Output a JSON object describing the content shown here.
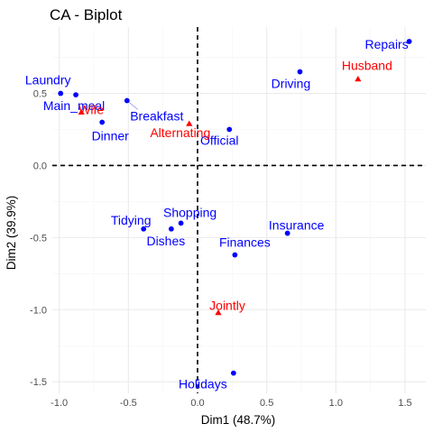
{
  "chart_data": {
    "type": "scatter",
    "title": "CA - Biplot",
    "xlabel": "Dim1 (48.7%)",
    "ylabel": "Dim2 (39.9%)",
    "xlim": [
      -1.05,
      1.65
    ],
    "ylim": [
      -1.58,
      0.96
    ],
    "x_ticks": [
      -1.0,
      -0.5,
      0.0,
      0.5,
      1.0,
      1.5
    ],
    "x_tick_labels": [
      "-1.0",
      "-0.5",
      "0.0",
      "0.5",
      "1.0",
      "1.5"
    ],
    "y_ticks": [
      -1.5,
      -1.0,
      -0.5,
      0.0,
      0.5
    ],
    "y_tick_labels": [
      "-1.5",
      "-1.0",
      "-0.5",
      "0.0",
      "0.5"
    ],
    "grid": true,
    "reference_lines": {
      "x": 0,
      "y": 0,
      "style": "dashed"
    },
    "colors": {
      "rows": "#0000ff",
      "columns": "#ff0000",
      "grid": "#ebebeb",
      "grid_minor": "#f5f5f5",
      "ref": "#000000"
    },
    "series": [
      {
        "marker": "circle",
        "color": "#0000ff",
        "points": [
          {
            "label": "Laundry",
            "x": -0.99,
            "y": 0.5
          },
          {
            "label": "Main_meal",
            "x": -0.88,
            "y": 0.49
          },
          {
            "label": "Dinner",
            "x": -0.69,
            "y": 0.3
          },
          {
            "label": "Breakfast",
            "x": -0.51,
            "y": 0.45
          },
          {
            "label": "Tidying",
            "x": -0.39,
            "y": -0.44
          },
          {
            "label": "Dishes",
            "x": -0.19,
            "y": -0.44
          },
          {
            "label": "Shopping",
            "x": -0.12,
            "y": -0.4
          },
          {
            "label": "Official",
            "x": 0.23,
            "y": 0.25
          },
          {
            "label": "Driving",
            "x": 0.74,
            "y": 0.65
          },
          {
            "label": "Finances",
            "x": 0.27,
            "y": -0.62
          },
          {
            "label": "Insurance",
            "x": 0.65,
            "y": -0.47
          },
          {
            "label": "Repairs",
            "x": 1.53,
            "y": 0.86
          },
          {
            "label": "Holidays",
            "x": 0.26,
            "y": -1.44
          }
        ]
      },
      {
        "marker": "triangle",
        "color": "#ff0000",
        "points": [
          {
            "label": "Wife",
            "x": -0.84,
            "y": 0.37
          },
          {
            "label": "Alternating",
            "x": -0.06,
            "y": 0.29
          },
          {
            "label": "Husband",
            "x": 1.16,
            "y": 0.6
          },
          {
            "label": "Jointly",
            "x": 0.15,
            "y": -1.02
          }
        ]
      }
    ]
  }
}
